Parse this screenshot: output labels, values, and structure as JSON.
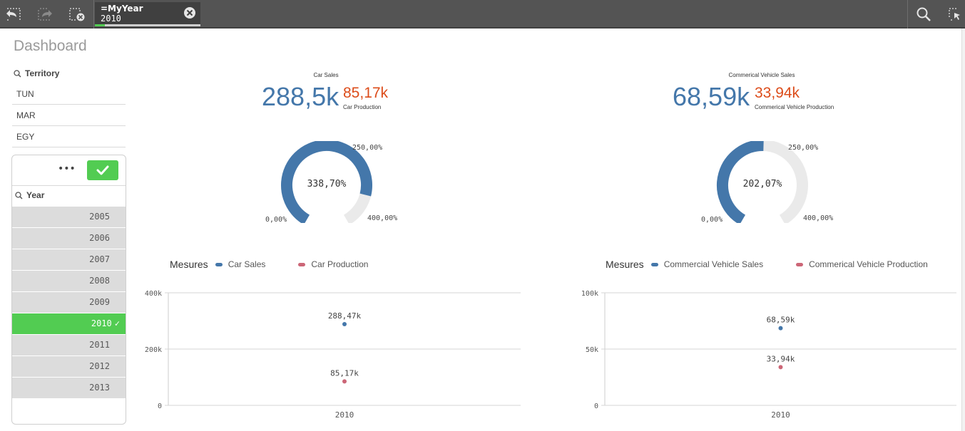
{
  "toolbar": {
    "selection_field": "=MyYear",
    "selection_value": "2010"
  },
  "page": {
    "title": "Dashboard"
  },
  "territory": {
    "label": "Territory",
    "items": [
      "TUN",
      "MAR",
      "EGY"
    ]
  },
  "year": {
    "label": "Year",
    "more_label": "•••",
    "items": [
      "2005",
      "2006",
      "2007",
      "2008",
      "2009",
      "2010",
      "2011",
      "2012",
      "2013"
    ],
    "selected": "2010",
    "selected_check": "✓"
  },
  "kpi_left": {
    "title": "Car Sales",
    "main_value": "288,5k",
    "secondary_value": "85,17k",
    "secondary_label": "Car Production"
  },
  "kpi_right": {
    "title": "Commerical Vehicle Sales",
    "main_value": "68,59k",
    "secondary_value": "33,94k",
    "secondary_label": "Commerical Vehicle Production"
  },
  "gauge_left": {
    "value_label": "338,70%",
    "value": 338.7,
    "min_label": "0,00%",
    "max_label": "400,00%",
    "mid_label": "250,00%",
    "min": 0,
    "max": 400
  },
  "gauge_right": {
    "value_label": "202,07%",
    "value": 202.07,
    "min_label": "0,00%",
    "max_label": "400,00%",
    "mid_label": "250,00%",
    "min": 0,
    "max": 400
  },
  "legend_left": {
    "title": "Mesures",
    "items": [
      "Car Sales",
      "Car Production"
    ]
  },
  "legend_right": {
    "title": "Mesures",
    "items": [
      "Commercial Vehicle Sales",
      "Commerical Vehicle Production"
    ]
  },
  "colors": {
    "blue": "#4477aa",
    "red": "#cc6677",
    "green": "#52cc52",
    "orange": "#dc4c1a"
  },
  "chart_data": [
    {
      "type": "scatter",
      "categories": [
        "2010"
      ],
      "series": [
        {
          "name": "Car Sales",
          "values": [
            288470
          ],
          "label": "288,47k"
        },
        {
          "name": "Car Production",
          "values": [
            85170
          ],
          "label": "85,17k"
        }
      ],
      "yticks": [
        "0",
        "200k",
        "400k"
      ],
      "ylim": [
        0,
        400000
      ],
      "grid": true,
      "legend": "top"
    },
    {
      "type": "scatter",
      "categories": [
        "2010"
      ],
      "series": [
        {
          "name": "Commercial Vehicle Sales",
          "values": [
            68590
          ],
          "label": "68,59k"
        },
        {
          "name": "Commerical Vehicle Production",
          "values": [
            33940
          ],
          "label": "33,94k"
        }
      ],
      "yticks": [
        "0",
        "50k",
        "100k"
      ],
      "ylim": [
        0,
        100000
      ],
      "grid": true,
      "legend": "top"
    }
  ]
}
